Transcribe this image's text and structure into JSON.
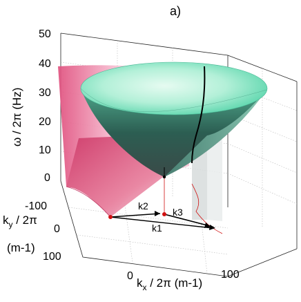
{
  "panel_label": "a)",
  "z_axis": {
    "title": "ω / 2π (Hz)",
    "ticks": [
      "50",
      "40",
      "30",
      "20",
      "10",
      "0"
    ]
  },
  "y_axis": {
    "title_main": "k",
    "title_sub": "y",
    "title_rest": " / 2π",
    "unit": "(m-1)",
    "ticks": [
      "-100",
      "0",
      "100"
    ]
  },
  "x_axis": {
    "title_main": "k",
    "title_sub": "x",
    "title_rest": " / 2π (m-1)",
    "ticks": [
      "0",
      "100"
    ]
  },
  "vectors": {
    "k1": "k1",
    "k2": "k2",
    "k3": "k3"
  },
  "colors": {
    "cone": "#7fe0c0",
    "paraboloid": "#e86a92",
    "resonance_curve": "#000000",
    "wave_vectors": "#000000",
    "points": "#d01010"
  }
}
